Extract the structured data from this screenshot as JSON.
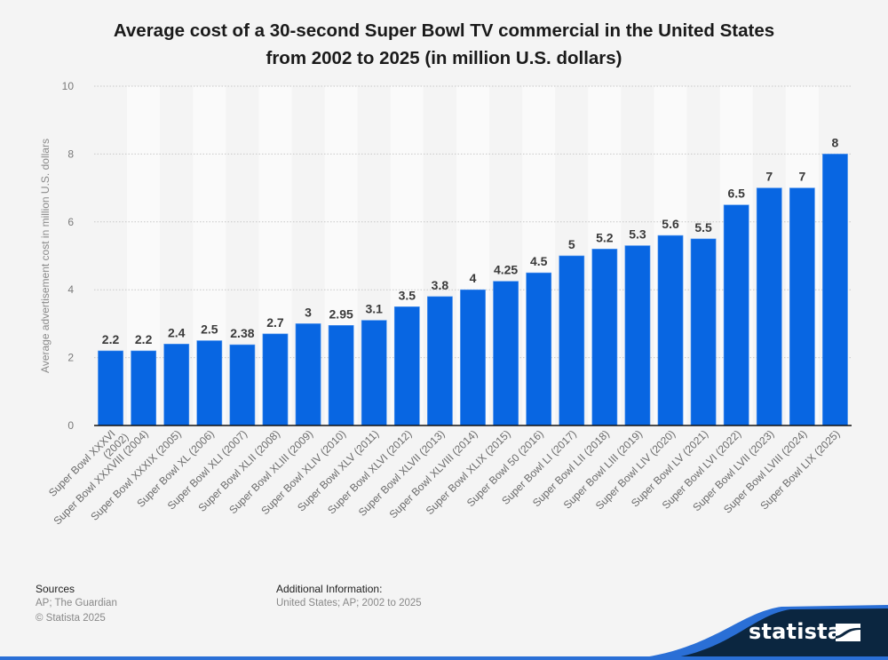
{
  "chart_data": {
    "type": "bar",
    "title": "Average cost of a 30-second Super Bowl TV commercial in the United States from 2002 to 2025 (in million U.S. dollars)",
    "title_lines": [
      "Average cost of a 30-second Super Bowl TV commercial in the United States",
      "from 2002 to 2025 (in million U.S. dollars)"
    ],
    "xlabel": "",
    "ylabel": "Average advertisement cost in million U.S. dollars",
    "ylim": [
      0,
      10
    ],
    "yticks": [
      0,
      2,
      4,
      6,
      8,
      10
    ],
    "grid": true,
    "legend": "none",
    "bar_color": "#0866e2",
    "categories": [
      "Super Bowl XXXVI (2002)",
      "Super Bowl XXXVIII (2004)",
      "Super Bowl XXXIX (2005)",
      "Super Bowl XL (2006)",
      "Super Bowl XLI (2007)",
      "Super Bowl XLII (2008)",
      "Super Bowl XLIII (2009)",
      "Super Bowl XLIV (2010)",
      "Super Bowl XLV (2011)",
      "Super Bowl XLVI (2012)",
      "Super Bowl XLVII (2013)",
      "Super Bowl XLVIII (2014)",
      "Super Bowl XLIX (2015)",
      "Super Bowl 50 (2016)",
      "Super Bowl LI (2017)",
      "Super Bowl LII (2018)",
      "Super Bowl LIII (2019)",
      "Super Bowl LIV (2020)",
      "Super Bowl LV (2021)",
      "Super Bowl LVI (2022)",
      "Super Bowl LVII (2023)",
      "Super Bowl LVIII (2024)",
      "Super Bowl LIX (2025)"
    ],
    "values": [
      2.2,
      2.2,
      2.4,
      2.5,
      2.38,
      2.7,
      3,
      2.95,
      3.1,
      3.5,
      3.8,
      4,
      4.25,
      4.5,
      5,
      5.2,
      5.3,
      5.6,
      5.5,
      6.5,
      7,
      7,
      8
    ],
    "value_labels": [
      "2.2",
      "2.2",
      "2.4",
      "2.5",
      "2.38",
      "2.7",
      "3",
      "2.95",
      "3.1",
      "3.5",
      "3.8",
      "4",
      "4.25",
      "4.5",
      "5",
      "5.2",
      "5.3",
      "5.6",
      "5.5",
      "6.5",
      "7",
      "7",
      "8"
    ]
  },
  "footer": {
    "sources_label": "Sources",
    "sources_value": "AP; The Guardian",
    "copyright": "© Statista 2025",
    "additional_label": "Additional Information:",
    "additional_value": "United States; AP; 2002 to 2025"
  },
  "brand": {
    "name": "statista",
    "dark_color": "#0b2640",
    "accent_color": "#2a6fd6"
  }
}
